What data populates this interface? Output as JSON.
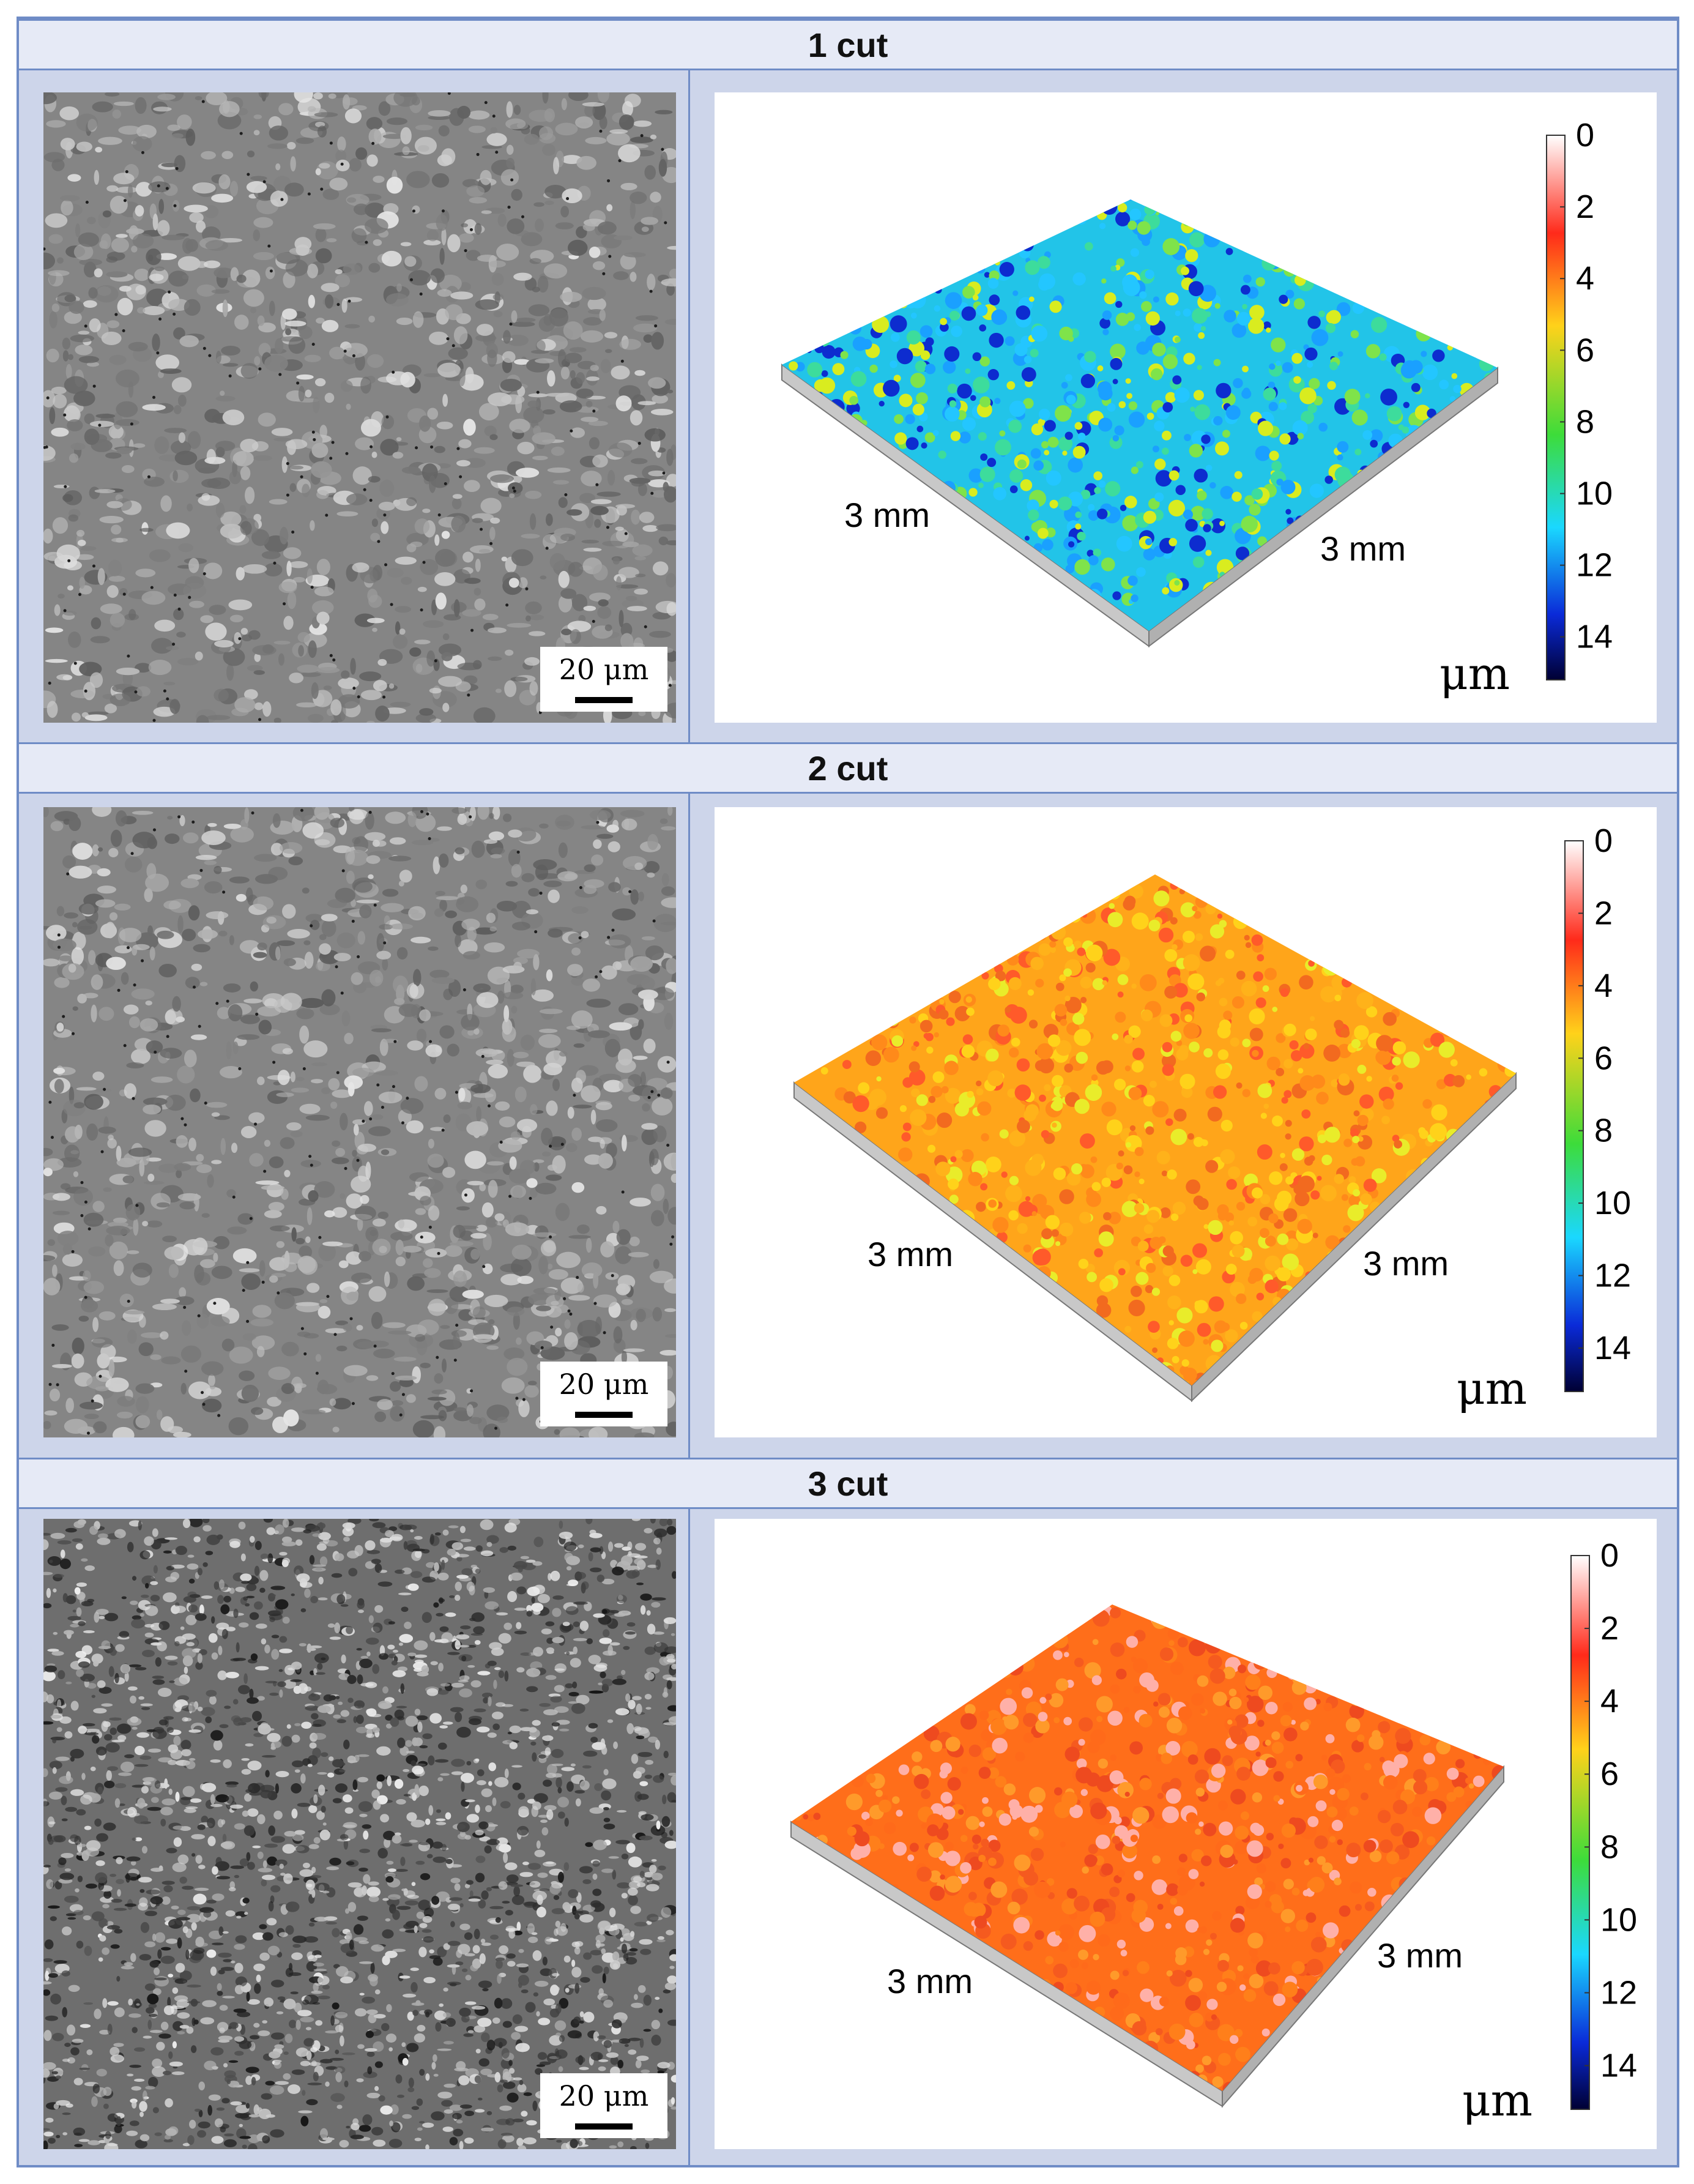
{
  "panels": [
    {
      "header": "1 cut",
      "scale_bar": "20 μm",
      "axis_label_left": "3 mm",
      "axis_label_right": "3 mm",
      "colorbar_ticks": [
        "0",
        "2",
        "4",
        "6",
        "8",
        "10",
        "12",
        "14"
      ],
      "colorbar_unit": "μm",
      "surface_palette": [
        "#1aa0ff",
        "#23c6ff",
        "#3ddc9c",
        "#7fe34a",
        "#d9ec1f",
        "#0d2ccf"
      ]
    },
    {
      "header": "2 cut",
      "scale_bar": "20 μm",
      "axis_label_left": "3 mm",
      "axis_label_right": "3 mm",
      "colorbar_ticks": [
        "0",
        "2",
        "4",
        "6",
        "8",
        "10",
        "12",
        "14"
      ],
      "colorbar_unit": "μm",
      "surface_palette": [
        "#ffb21a",
        "#ff8a1a",
        "#ffd21a",
        "#f26a1f",
        "#e9ec2a",
        "#ff5a2a"
      ]
    },
    {
      "header": "3 cut",
      "scale_bar": "20 μm",
      "axis_label_left": "3 mm",
      "axis_label_right": "3 mm",
      "colorbar_ticks": [
        "0",
        "2",
        "4",
        "6",
        "8",
        "10",
        "12",
        "14"
      ],
      "colorbar_unit": "μm",
      "surface_palette": [
        "#ff6a1a",
        "#ff7f1a",
        "#f55a1f",
        "#ff9a2a",
        "#ffb0a8",
        "#ee4a1f"
      ]
    }
  ],
  "colors": {
    "frame_border": "#6f8cc6",
    "header_bg": "#e6eaf6",
    "row_bg": "#cdd5ea"
  }
}
